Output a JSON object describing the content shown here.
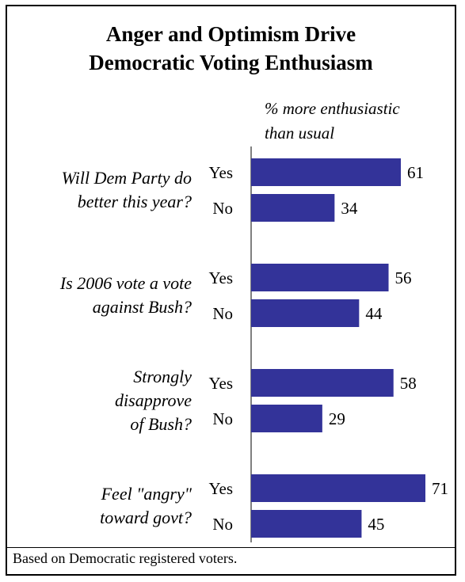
{
  "title_line1": "Anger and Optimism Drive",
  "title_line2": "Democratic Voting Enthusiasm",
  "unit_line1": "% more enthusiastic",
  "unit_line2": "than usual",
  "note": "Based on Democratic registered voters.",
  "chart_data": {
    "type": "bar",
    "orientation": "horizontal",
    "title": "Anger and Optimism Drive Democratic Voting Enthusiasm",
    "ylabel": "% more enthusiastic than usual",
    "bar_color": "#333399",
    "xlim": [
      0,
      71
    ],
    "groups": [
      {
        "question": [
          "Will Dem Party do",
          "better this year?"
        ],
        "bars": [
          {
            "label": "Yes",
            "value": 61
          },
          {
            "label": "No",
            "value": 34
          }
        ]
      },
      {
        "question": [
          "Is 2006 vote a vote",
          "against Bush?"
        ],
        "bars": [
          {
            "label": "Yes",
            "value": 56
          },
          {
            "label": "No",
            "value": 44
          }
        ]
      },
      {
        "question": [
          "Strongly",
          "disapprove",
          "of Bush?"
        ],
        "bars": [
          {
            "label": "Yes",
            "value": 58
          },
          {
            "label": "No",
            "value": 29
          }
        ]
      },
      {
        "question": [
          "Feel \"angry\"",
          "toward govt?"
        ],
        "bars": [
          {
            "label": "Yes",
            "value": 71
          },
          {
            "label": "No",
            "value": 45
          }
        ]
      }
    ]
  }
}
